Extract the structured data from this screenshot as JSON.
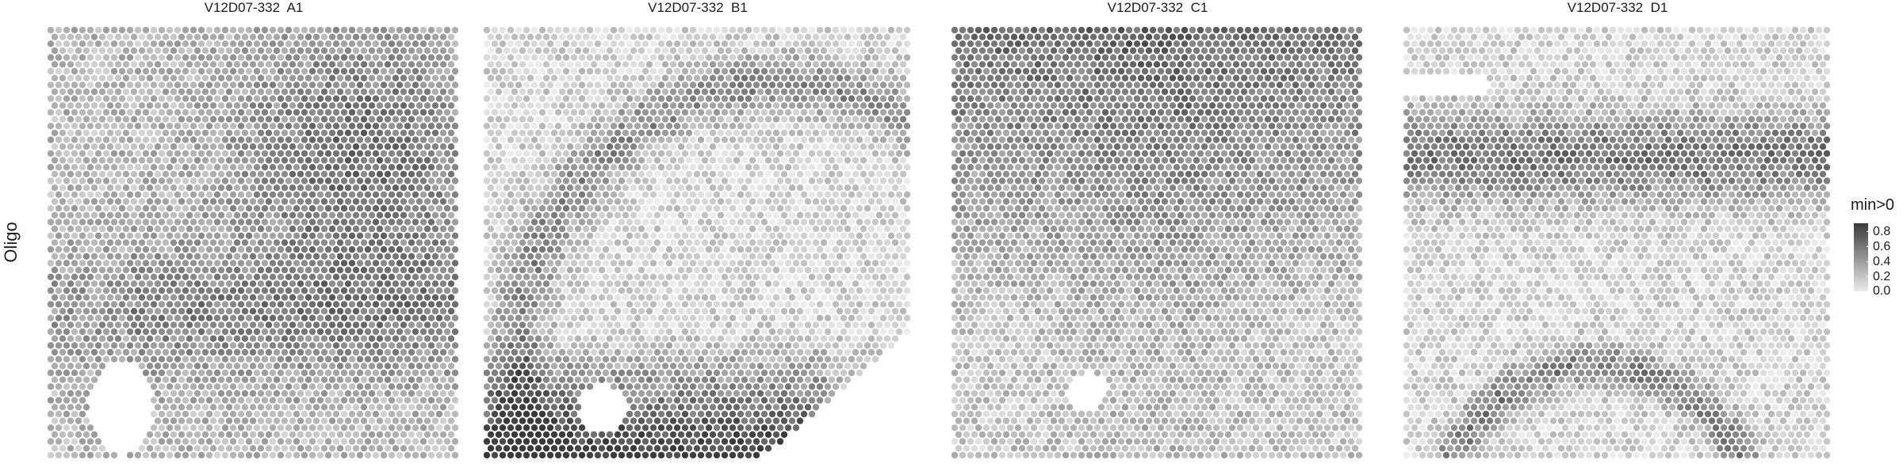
{
  "row_label": "Oligo",
  "legend": {
    "title": "min>0",
    "ticks": [
      "0.8",
      "0.6",
      "0.4",
      "0.2",
      "0.0"
    ],
    "color_low": "#ececec",
    "color_high": "#3a3a3a"
  },
  "chart_data": [
    {
      "type": "heatmap",
      "title": "V12D07-332  A1",
      "fill_label": "min>0",
      "range": [
        0,
        0.85
      ],
      "pattern": "dense upper-right, dense lower-middle band, void lower-left",
      "mean": 0.42
    },
    {
      "type": "heatmap",
      "title": "V12D07-332  B1",
      "fill_label": "min>0",
      "range": [
        0,
        0.85
      ],
      "pattern": "dark arc along top edge, light center, very dark lower band",
      "mean": 0.3
    },
    {
      "type": "heatmap",
      "title": "V12D07-332  C1",
      "fill_label": "min>0",
      "range": [
        0,
        0.85
      ],
      "pattern": "dark upper region, lighter lower region, small void lower-middle",
      "mean": 0.36
    },
    {
      "type": "heatmap",
      "title": "V12D07-332  D1",
      "fill_label": "min>0",
      "range": [
        0,
        0.85
      ],
      "pattern": "dark upper band, light middle, dark arc lower",
      "mean": 0.33
    }
  ]
}
